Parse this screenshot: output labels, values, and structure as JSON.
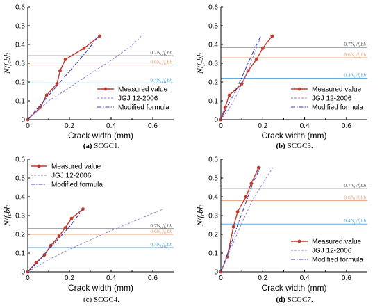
{
  "colors": {
    "measured": "#c0392b",
    "jgj": "#8a7fd1",
    "modified": "#3b3bb0",
    "level_07": "#555555",
    "level_06": "#e8a07a",
    "level_04": "#4aa3df"
  },
  "legend": {
    "measured": "Measured value",
    "jgj": "JGJ 12-2006",
    "modified": "Modified formula"
  },
  "level_labels": {
    "p07": "0.7N",
    "p06": "0.6N",
    "p04": "0.4N",
    "sub_u": "u",
    "f": "f",
    "sub_c": "c",
    "bh": "bh"
  },
  "chart_data": [
    {
      "type": "line",
      "caption_bold": "(a)",
      "caption_rest": " SCGC1.",
      "xlabel": "Crack width (mm)",
      "ylabel_parts": [
        "N",
        "/",
        "f",
        "c",
        "bh"
      ],
      "xlim": [
        0,
        0.7
      ],
      "ylim": [
        0,
        0.6
      ],
      "x_ticks": [
        "0",
        "0.2",
        "0.4",
        "0.6"
      ],
      "y_ticks": [
        "0",
        "0.1",
        "0.2",
        "0.3",
        "0.4",
        "0.5",
        "0.6"
      ],
      "levels": {
        "p07": 0.34,
        "p06": 0.29,
        "p04": 0.195
      },
      "legend_position": "bottom-right",
      "series": [
        {
          "name": "Measured value",
          "x": [
            0,
            0.06,
            0.09,
            0.14,
            0.155,
            0.18,
            0.27,
            0.345
          ],
          "y": [
            0,
            0.065,
            0.13,
            0.19,
            0.26,
            0.32,
            0.38,
            0.445
          ]
        },
        {
          "name": "JGJ 12-2006",
          "x": [
            0,
            0.1,
            0.2,
            0.3,
            0.4,
            0.5,
            0.55
          ],
          "y": [
            0,
            0.1,
            0.17,
            0.245,
            0.315,
            0.395,
            0.45
          ]
        },
        {
          "name": "Modified formula",
          "x": [
            0,
            0.07,
            0.14,
            0.21,
            0.28,
            0.34
          ],
          "y": [
            0,
            0.09,
            0.18,
            0.27,
            0.36,
            0.445
          ]
        }
      ]
    },
    {
      "type": "line",
      "caption_bold": "(b)",
      "caption_rest": " SCGC3.",
      "xlabel": "Crack width (mm)",
      "ylabel_parts": [
        "N",
        "/",
        "f",
        "c",
        "bh"
      ],
      "xlim": [
        0,
        0.7
      ],
      "ylim": [
        0,
        0.6
      ],
      "x_ticks": [
        "0",
        "0.2",
        "0.4",
        "0.6"
      ],
      "y_ticks": [
        "0",
        "0.1",
        "0.2",
        "0.3",
        "0.4",
        "0.5",
        "0.6"
      ],
      "levels": {
        "p07": 0.385,
        "p06": 0.33,
        "p04": 0.22
      },
      "legend_position": "bottom-right",
      "series": [
        {
          "name": "Measured value",
          "x": [
            0,
            0.02,
            0.04,
            0.1,
            0.13,
            0.17,
            0.2,
            0.245
          ],
          "y": [
            0,
            0.065,
            0.13,
            0.19,
            0.26,
            0.32,
            0.38,
            0.445
          ]
        },
        {
          "name": "JGJ 12-2006",
          "x": [
            0,
            0.04,
            0.08,
            0.12,
            0.16,
            0.19
          ],
          "y": [
            0,
            0.06,
            0.14,
            0.24,
            0.35,
            0.44
          ]
        },
        {
          "name": "Modified formula",
          "x": [
            0,
            0.03,
            0.07,
            0.11,
            0.15,
            0.19
          ],
          "y": [
            0,
            0.07,
            0.15,
            0.25,
            0.35,
            0.445
          ]
        }
      ]
    },
    {
      "type": "line",
      "caption_bold": "",
      "caption_rest": "(c) SCGC4.",
      "xlabel": "Crack width (mm)",
      "ylabel_parts": [
        "N",
        "/",
        "f",
        "c",
        "bh"
      ],
      "xlim": [
        0,
        0.7
      ],
      "ylim": [
        0,
        0.6
      ],
      "x_ticks": [
        "0",
        "0.2",
        "0.4",
        "0.6"
      ],
      "y_ticks": [
        "0",
        "0.1",
        "0.2",
        "0.3",
        "0.4",
        "0.5",
        "0.6"
      ],
      "levels": {
        "p07": 0.23,
        "p06": 0.2,
        "p04": 0.13
      },
      "legend_position": "top-left",
      "series": [
        {
          "name": "Measured value",
          "x": [
            0,
            0.04,
            0.08,
            0.11,
            0.15,
            0.18,
            0.21,
            0.265
          ],
          "y": [
            0,
            0.05,
            0.09,
            0.14,
            0.19,
            0.235,
            0.285,
            0.335
          ]
        },
        {
          "name": "JGJ 12-2006",
          "x": [
            0,
            0.1,
            0.2,
            0.3,
            0.4,
            0.5,
            0.65
          ],
          "y": [
            0,
            0.065,
            0.12,
            0.17,
            0.22,
            0.265,
            0.335
          ]
        },
        {
          "name": "Modified formula",
          "x": [
            0,
            0.05,
            0.1,
            0.15,
            0.2,
            0.265
          ],
          "y": [
            0,
            0.055,
            0.12,
            0.18,
            0.24,
            0.335
          ]
        }
      ]
    },
    {
      "type": "line",
      "caption_bold": "(d)",
      "caption_rest": " SCGC7.",
      "xlabel": "Crack width (mm)",
      "ylabel_parts": [
        "N",
        "/",
        "f",
        "c",
        "bh"
      ],
      "xlim": [
        0,
        0.7
      ],
      "ylim": [
        0,
        0.6
      ],
      "x_ticks": [
        "0",
        "0.2",
        "0.4",
        "0.6"
      ],
      "y_ticks": [
        "0",
        "0.1",
        "0.2",
        "0.3",
        "0.4",
        "0.5",
        "0.6"
      ],
      "levels": {
        "p07": 0.445,
        "p06": 0.38,
        "p04": 0.255
      },
      "legend_position": "bottom-right",
      "series": [
        {
          "name": "Measured value",
          "x": [
            0,
            0.03,
            0.06,
            0.08,
            0.12,
            0.145,
            0.18
          ],
          "y": [
            0,
            0.08,
            0.24,
            0.32,
            0.4,
            0.47,
            0.555
          ]
        },
        {
          "name": "JGJ 12-2006",
          "x": [
            0,
            0.05,
            0.1,
            0.15,
            0.2,
            0.25
          ],
          "y": [
            0,
            0.13,
            0.26,
            0.38,
            0.47,
            0.56
          ]
        },
        {
          "name": "Modified formula",
          "x": [
            0,
            0.04,
            0.08,
            0.12,
            0.155,
            0.19
          ],
          "y": [
            0,
            0.12,
            0.25,
            0.37,
            0.48,
            0.56
          ]
        }
      ]
    }
  ]
}
